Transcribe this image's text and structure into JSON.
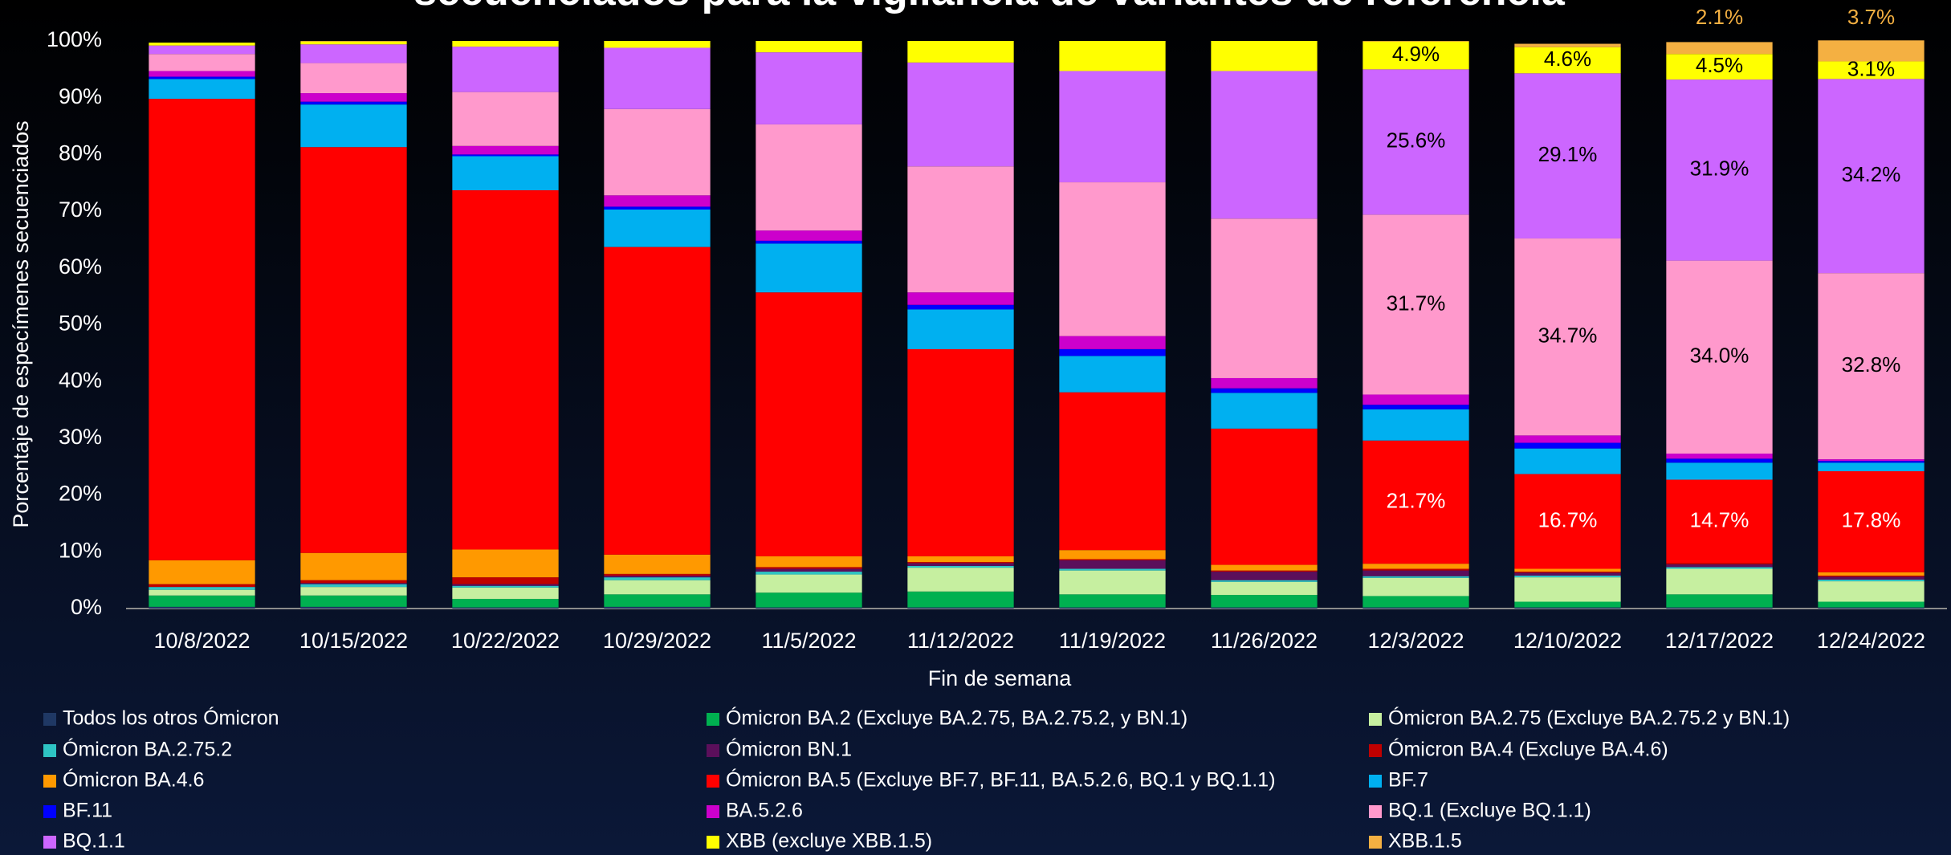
{
  "chart_data": {
    "type": "stacked_bar",
    "title": "secuenciados para la vigilancia de variantes de referencia",
    "x_label": "Fin de semana",
    "y_label": "Porcentaje de especímenes secuenciados",
    "categories": [
      "10/8/2022",
      "10/15/2022",
      "10/22/2022",
      "10/29/2022",
      "11/5/2022",
      "11/12/2022",
      "11/19/2022",
      "11/26/2022",
      "12/3/2022",
      "12/10/2022",
      "12/17/2022",
      "12/24/2022"
    ],
    "ylim": [
      0,
      100
    ],
    "yticks": [
      {
        "value": 0,
        "label": "0%"
      },
      {
        "value": 10,
        "label": "10%"
      },
      {
        "value": 20,
        "label": "20%"
      },
      {
        "value": 30,
        "label": "30%"
      },
      {
        "value": 40,
        "label": "40%"
      },
      {
        "value": 50,
        "label": "50%"
      },
      {
        "value": 60,
        "label": "60%"
      },
      {
        "value": 70,
        "label": "70%"
      },
      {
        "value": 80,
        "label": "80%"
      },
      {
        "value": 90,
        "label": "90%"
      },
      {
        "value": 100,
        "label": "100%"
      }
    ],
    "grid": false,
    "series": [
      {
        "name": "Todos los otros Ómicron",
        "color": "#1f3864",
        "values": [
          0.3,
          0.3,
          0.2,
          0.3,
          0.2,
          0.2,
          0.2,
          0.2,
          0.2,
          0.2,
          0.2,
          0.2
        ]
      },
      {
        "name": "Ómicron BA.2 (Excluye BA.2.75, BA.2.75.2, y BN.1)",
        "color": "#00b050",
        "values": [
          2,
          2,
          1.5,
          2.2,
          2.6,
          2.8,
          2.3,
          2.2,
          2,
          1,
          2.3,
          1
        ]
      },
      {
        "name": "Ómicron BA.2.75 (Excluye BA.2.75.2 y BN.1)",
        "color": "#c6efa0",
        "values": [
          1,
          1.5,
          2,
          2.5,
          3.2,
          4.2,
          4.2,
          2.3,
          3.2,
          4.3,
          4.5,
          3.6
        ]
      },
      {
        "name": "Ómicron BA.2.75.2",
        "color": "#2ec4c4",
        "values": [
          0.5,
          0.5,
          0.3,
          0.5,
          0.5,
          0.3,
          0.3,
          0.3,
          0.3,
          0.3,
          0.3,
          0.3
        ]
      },
      {
        "name": "Ómicron BN.1",
        "color": "#5b0f5b",
        "values": [
          0,
          0.2,
          0.3,
          0.3,
          0.5,
          0.5,
          1.5,
          1.5,
          1,
          0.5,
          0.5,
          0.5
        ]
      },
      {
        "name": "Ómicron BA.4 (Excluye BA.4.6)",
        "color": "#c00000",
        "values": [
          0.5,
          0.5,
          1.2,
          0.3,
          0.3,
          0.2,
          0.2,
          0.2,
          0.3,
          0.2,
          0.2,
          0.2
        ]
      },
      {
        "name": "Ómicron BA.4.6",
        "color": "#ff9900",
        "values": [
          4.2,
          4.8,
          4.9,
          3.4,
          1.9,
          1,
          1.6,
          1,
          0.9,
          0.5,
          0,
          0.6
        ]
      },
      {
        "name": "Ómicron BA.5 (Excluye BF.7, BF.11,  BA.5.2.6,  BQ.1 y BQ.1.1)",
        "color": "#ff0000",
        "label_color": "#ffffff",
        "values": [
          81.3,
          71.5,
          63.3,
          54.2,
          46.5,
          36.5,
          27.8,
          24,
          21.7,
          16.7,
          14.7,
          17.8
        ],
        "value_labels": [
          null,
          null,
          null,
          null,
          null,
          null,
          null,
          null,
          "21.7%",
          "16.7%",
          "14.7%",
          "17.8%"
        ]
      },
      {
        "name": "BF.7",
        "color": "#00b0f0",
        "values": [
          3.5,
          7.5,
          6,
          6.6,
          8.6,
          7,
          6.4,
          6.3,
          5.5,
          4.5,
          3,
          1.5
        ]
      },
      {
        "name": "BF.11",
        "color": "#0000ff",
        "values": [
          0.4,
          0.5,
          0.3,
          0.5,
          0.5,
          0.8,
          1.2,
          0.8,
          0.8,
          1,
          0.7,
          0.3
        ]
      },
      {
        "name": "BA.5.2.6",
        "color": "#cc00cc",
        "values": [
          1,
          1.5,
          1.5,
          2,
          1.8,
          2.2,
          2.3,
          1.8,
          1.8,
          1.3,
          0.9,
          0.3
        ]
      },
      {
        "name": "BQ.1 (Excluye BQ.1.1)",
        "color": "#ff99cc",
        "label_color": "#000000",
        "values": [
          3,
          5.3,
          9.5,
          15.2,
          18.7,
          22.2,
          27.1,
          28.1,
          31.7,
          34.7,
          34,
          32.8
        ],
        "value_labels": [
          null,
          null,
          null,
          null,
          null,
          null,
          null,
          null,
          "31.7%",
          "34.7%",
          "34.0%",
          "32.8%"
        ]
      },
      {
        "name": "BQ.1.1",
        "color": "#cc66ff",
        "label_color": "#000000",
        "values": [
          1.5,
          3.3,
          8,
          10.8,
          12.7,
          18.3,
          19.6,
          26,
          25.6,
          29.1,
          31.9,
          34.2
        ],
        "value_labels": [
          null,
          null,
          null,
          null,
          null,
          null,
          null,
          null,
          "25.6%",
          "29.1%",
          "31.9%",
          "34.2%"
        ]
      },
      {
        "name": "XBB (excluye XBB.1.5)",
        "color": "#ffff00",
        "label_color": "#000000",
        "values": [
          0.5,
          0.5,
          1,
          1.2,
          2,
          3.8,
          5.3,
          5.3,
          4.9,
          4.6,
          4.5,
          3.1
        ],
        "value_labels": [
          null,
          null,
          null,
          null,
          null,
          null,
          null,
          null,
          "4.9%",
          "4.6%",
          "4.5%",
          "3.1%"
        ]
      },
      {
        "name": "XBB.1.5",
        "color": "#f4b042",
        "label_color": "#f4b042",
        "label_above": true,
        "values": [
          0,
          0.1,
          0,
          0,
          0,
          0,
          0,
          0,
          0.1,
          0.6,
          2.1,
          3.7
        ],
        "value_labels": [
          null,
          null,
          null,
          null,
          null,
          null,
          null,
          null,
          null,
          null,
          "2.1%",
          "3.7%"
        ]
      }
    ]
  }
}
